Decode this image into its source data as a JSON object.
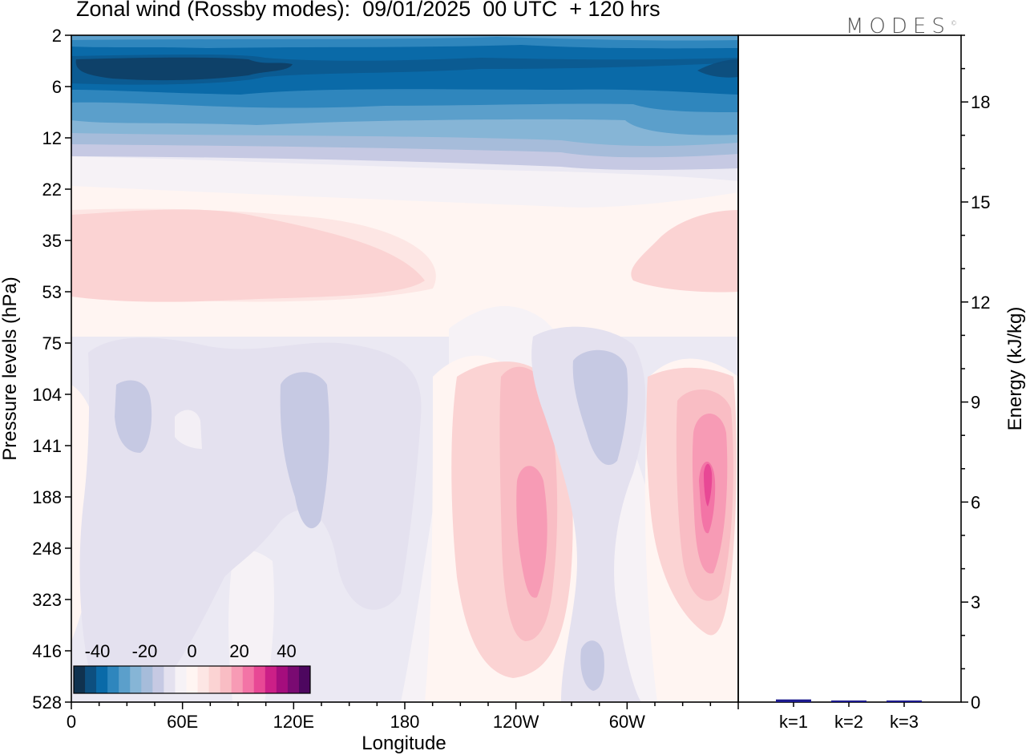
{
  "title": "Zonal wind (Rossby modes):  09/01/2025  00 UTC  + 120 hrs",
  "brand": "MODES",
  "brand_mark": "©",
  "chart_data": [
    {
      "type": "heatmap",
      "title": "Zonal wind (Rossby modes):  09/01/2025  00 UTC  + 120 hrs",
      "xlabel": "Longitude",
      "ylabel": "Pressure levels (hPa)",
      "x_ticks": [
        "0",
        "60E",
        "120E",
        "180",
        "120W",
        "60W"
      ],
      "x_tick_lon": [
        0,
        60,
        120,
        180,
        240,
        300
      ],
      "x_range": [
        0,
        360
      ],
      "y_ticks": [
        "2",
        "6",
        "12",
        "22",
        "35",
        "53",
        "75",
        "104",
        "141",
        "188",
        "248",
        "323",
        "416",
        "528"
      ],
      "colorbar": {
        "ticks": [
          "-40",
          "-20",
          "0",
          "20",
          "40"
        ],
        "tick_values": [
          -40,
          -20,
          0,
          20,
          40
        ],
        "range": [
          -50,
          50
        ],
        "step": 5,
        "colors": [
          "#10324f",
          "#0d4f7f",
          "#0a6aa8",
          "#2f86bd",
          "#5b9fcb",
          "#86b5d6",
          "#a6bcda",
          "#c6c9e3",
          "#e4e1ef",
          "#f6f2f6",
          "#fff5f2",
          "#fde6e4",
          "#fbd3d3",
          "#f9bdc4",
          "#f79bb5",
          "#f374a6",
          "#e84895",
          "#cc1f87",
          "#a50d7d",
          "#7a0a72",
          "#4d075f"
        ]
      },
      "grid": false
    },
    {
      "type": "bar",
      "categories": [
        "k=1",
        "k=2",
        "k=3"
      ],
      "values": [
        0.08,
        0.03,
        0.02
      ],
      "ylabel": "Energy (kJ/kg)",
      "y_ticks": [
        "0",
        "3",
        "6",
        "9",
        "12",
        "15",
        "18"
      ],
      "ylim": [
        0,
        20
      ],
      "bar_color": "#1c1a8e"
    }
  ]
}
